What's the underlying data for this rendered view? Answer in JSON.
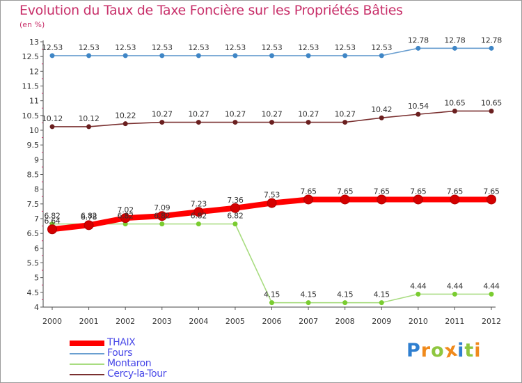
{
  "chart_data": {
    "type": "line",
    "title": "Evolution du Taux de Taxe Foncière sur les Propriétés Bâties",
    "unit_label": "(en %)",
    "xlabel": "",
    "ylabel": "",
    "categories": [
      "2000",
      "2001",
      "2002",
      "2003",
      "2004",
      "2005",
      "2006",
      "2007",
      "2008",
      "2009",
      "2010",
      "2011",
      "2012"
    ],
    "ylim": [
      4,
      13
    ],
    "y_ticks": [
      4,
      4.5,
      5,
      5.5,
      6,
      6.5,
      7,
      7.5,
      8,
      8.5,
      9,
      9.5,
      10,
      10.5,
      11,
      11.5,
      12,
      12.5,
      13
    ],
    "y_tick_labels": [
      "4",
      "4.5",
      "5",
      "5.5",
      "6",
      "6.5",
      "7",
      "7.5",
      "8",
      "8.5",
      "9",
      "9.5",
      "10",
      "10.5",
      "11",
      "11.5",
      "12",
      "12.5",
      "13"
    ],
    "series": [
      {
        "name": "THAIX",
        "color": "#ff0000",
        "marker_color": "#d40000",
        "line_weight": "heavy",
        "values": [
          6.64,
          6.78,
          7.02,
          7.09,
          7.23,
          7.36,
          7.53,
          7.65,
          7.65,
          7.65,
          7.65,
          7.65,
          7.65
        ],
        "labels": [
          "6.64",
          "6.78",
          "7.02",
          "7.09",
          "7.23",
          "7.36",
          "7.53",
          "7.65",
          "7.65",
          "7.65",
          "7.65",
          "7.65",
          "7.65"
        ]
      },
      {
        "name": "Fours",
        "color": "#6a9fd0",
        "marker_color": "#3f86c6",
        "line_weight": "thin",
        "values": [
          12.53,
          12.53,
          12.53,
          12.53,
          12.53,
          12.53,
          12.53,
          12.53,
          12.53,
          12.53,
          12.78,
          12.78,
          12.78
        ],
        "labels": [
          "12.53",
          "12.53",
          "12.53",
          "12.53",
          "12.53",
          "12.53",
          "12.53",
          "12.53",
          "12.53",
          "12.53",
          "12.78",
          "12.78",
          "12.78"
        ]
      },
      {
        "name": "Montaron",
        "color": "#a8dc80",
        "marker_color": "#7acc30",
        "line_weight": "thin",
        "values": [
          6.82,
          6.82,
          6.82,
          6.82,
          6.82,
          6.82,
          4.15,
          4.15,
          4.15,
          4.15,
          4.44,
          4.44,
          4.44
        ],
        "labels": [
          "6.82",
          "6.82",
          "6.82",
          "6.82",
          "6.82",
          "6.82",
          "4.15",
          "4.15",
          "4.15",
          "4.15",
          "4.44",
          "4.44",
          "4.44"
        ]
      },
      {
        "name": "Cercy-la-Tour",
        "color": "#7a3030",
        "marker_color": "#6a1f1f",
        "line_weight": "thin",
        "values": [
          10.12,
          10.12,
          10.22,
          10.27,
          10.27,
          10.27,
          10.27,
          10.27,
          10.27,
          10.42,
          10.54,
          10.65,
          10.65
        ],
        "labels": [
          "10.12",
          "10.12",
          "10.22",
          "10.27",
          "10.27",
          "10.27",
          "10.27",
          "10.27",
          "10.27",
          "10.42",
          "10.54",
          "10.65",
          "10.65"
        ]
      }
    ],
    "grid": false,
    "legend_position": "bottom-left"
  },
  "logo": {
    "letters": [
      "P",
      "r",
      "o",
      "x",
      "i",
      "t",
      "i"
    ],
    "colors": [
      "#2f7fd0",
      "#f08a1c",
      "#8ec63f",
      "#f08a1c",
      "#2f7fd0",
      "#8ec63f",
      "#f08a1c"
    ]
  }
}
